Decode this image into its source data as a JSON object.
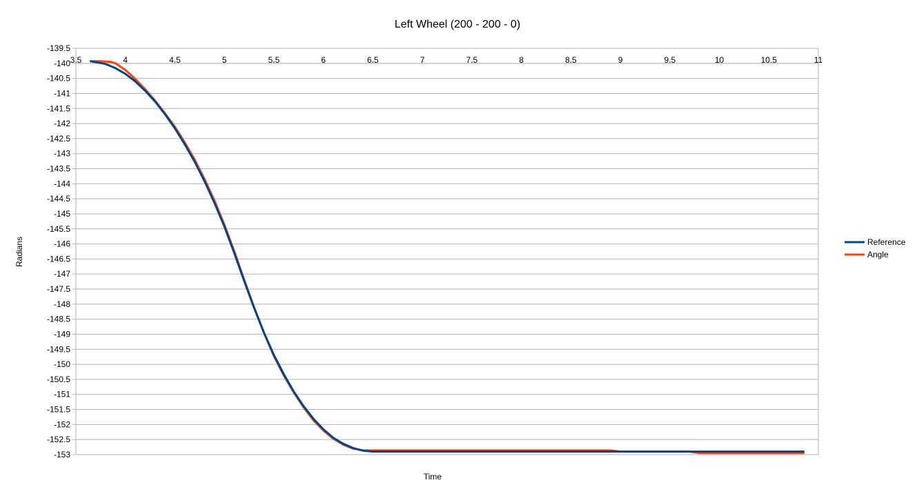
{
  "chart_data": {
    "type": "line",
    "title": "Left Wheel (200 - 200 - 0)",
    "xlabel": "Time",
    "ylabel": "Radians",
    "xlim": [
      3.5,
      11
    ],
    "ylim": [
      -153,
      -139.5
    ],
    "x_ticks": [
      "3.5",
      "4",
      "4.5",
      "5",
      "5.5",
      "6",
      "6.5",
      "7",
      "7.5",
      "8",
      "8.5",
      "9",
      "9.5",
      "10",
      "10.5",
      "11"
    ],
    "y_ticks": [
      "-139.5",
      "-140",
      "-140.5",
      "-141",
      "-141.5",
      "-142",
      "-142.5",
      "-143",
      "-143.5",
      "-144",
      "-144.5",
      "-145",
      "-145.5",
      "-146",
      "-146.5",
      "-147",
      "-147.5",
      "-148",
      "-148.5",
      "-149",
      "-149.5",
      "-150",
      "-150.5",
      "-151",
      "-151.5",
      "-152",
      "-152.5",
      "-153"
    ],
    "x_axis_position": "top",
    "grid": true,
    "legend_position": "right",
    "series": [
      {
        "name": "Reference",
        "color": "#004586",
        "x": [
          3.65,
          3.8,
          3.9,
          4.0,
          4.1,
          4.2,
          4.3,
          4.4,
          4.5,
          4.6,
          4.7,
          4.8,
          4.9,
          5.0,
          5.1,
          5.2,
          5.3,
          5.4,
          5.5,
          5.6,
          5.7,
          5.8,
          5.9,
          6.0,
          6.1,
          6.2,
          6.3,
          6.4,
          6.5,
          6.6,
          7.0,
          8.0,
          9.0,
          9.7,
          9.8,
          10.0,
          10.5,
          10.85
        ],
        "y": [
          -139.93,
          -140.02,
          -140.16,
          -140.35,
          -140.6,
          -140.91,
          -141.27,
          -141.69,
          -142.16,
          -142.69,
          -143.27,
          -143.92,
          -144.64,
          -145.42,
          -146.3,
          -147.23,
          -148.12,
          -148.95,
          -149.69,
          -150.33,
          -150.9,
          -151.39,
          -151.81,
          -152.16,
          -152.44,
          -152.64,
          -152.78,
          -152.87,
          -152.9,
          -152.9,
          -152.9,
          -152.9,
          -152.9,
          -152.9,
          -152.9,
          -152.9,
          -152.9,
          -152.9
        ]
      },
      {
        "name": "Angle",
        "color": "#ff420e",
        "x": [
          3.65,
          3.75,
          3.85,
          3.9,
          4.0,
          4.1,
          4.2,
          4.3,
          4.4,
          4.5,
          4.6,
          4.7,
          4.8,
          4.9,
          5.0,
          5.1,
          5.2,
          5.3,
          5.4,
          5.5,
          5.6,
          5.7,
          5.8,
          5.9,
          6.0,
          6.1,
          6.2,
          6.3,
          6.4,
          6.5,
          6.6,
          7.0,
          8.0,
          8.9,
          9.0,
          9.7,
          9.8,
          10.0,
          10.5,
          10.85
        ],
        "y": [
          -139.93,
          -139.93,
          -139.95,
          -140.0,
          -140.22,
          -140.52,
          -140.86,
          -141.24,
          -141.66,
          -142.11,
          -142.63,
          -143.2,
          -143.85,
          -144.56,
          -145.36,
          -146.24,
          -147.19,
          -148.1,
          -148.96,
          -149.72,
          -150.37,
          -150.93,
          -151.43,
          -151.86,
          -152.2,
          -152.47,
          -152.67,
          -152.8,
          -152.86,
          -152.86,
          -152.86,
          -152.86,
          -152.86,
          -152.86,
          -152.9,
          -152.9,
          -152.95,
          -152.95,
          -152.95,
          -152.95
        ]
      }
    ]
  }
}
